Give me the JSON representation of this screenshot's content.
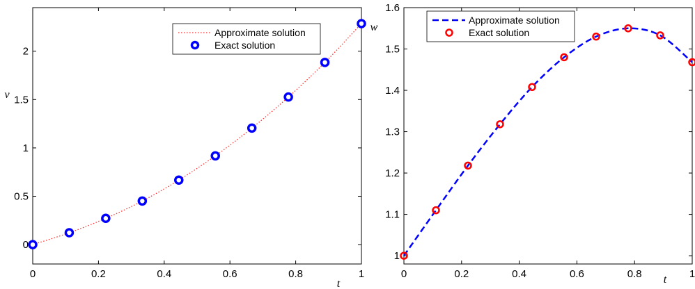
{
  "chart_data": [
    {
      "type": "line",
      "xlabel": "t",
      "ylabel": "v",
      "xlim": [
        0,
        1
      ],
      "ylim": [
        -0.2,
        2.45
      ],
      "xticks": [
        "0",
        "0.2",
        "0.4",
        "0.6",
        "0.8",
        "1"
      ],
      "yticks": [
        "0",
        "0.5",
        "1",
        "1.5",
        "2"
      ],
      "grid": false,
      "legend_placement": "top-right",
      "series": [
        {
          "name": "Approximate solution",
          "style": "dotted line",
          "color": "#ff3333",
          "x": [
            0,
            0.1111,
            0.2222,
            0.3333,
            0.4444,
            0.5556,
            0.6667,
            0.7778,
            0.8889,
            1
          ],
          "y": [
            0,
            0.123,
            0.272,
            0.451,
            0.667,
            0.918,
            1.205,
            1.526,
            1.884,
            2.285
          ]
        },
        {
          "name": "Exact solution",
          "style": "circle markers",
          "color": "#0000ff",
          "x": [
            0,
            0.1111,
            0.2222,
            0.3333,
            0.4444,
            0.5556,
            0.6667,
            0.7778,
            0.8889,
            1
          ],
          "y": [
            0,
            0.123,
            0.272,
            0.451,
            0.667,
            0.918,
            1.205,
            1.526,
            1.884,
            2.285
          ]
        }
      ]
    },
    {
      "type": "line",
      "xlabel": "t",
      "ylabel": "w",
      "xlim": [
        0,
        1
      ],
      "ylim": [
        0.98,
        1.6
      ],
      "xticks": [
        "0",
        "0.2",
        "0.4",
        "0.6",
        "0.8",
        "1"
      ],
      "yticks": [
        "1",
        "1.1",
        "1.2",
        "1.3",
        "1.4",
        "1.5",
        "1.6"
      ],
      "grid": false,
      "legend_placement": "top-left",
      "series": [
        {
          "name": "Approximate solution",
          "style": "dashed line",
          "color": "#0000ff",
          "x": [
            0,
            0.1111,
            0.2222,
            0.3333,
            0.4444,
            0.5556,
            0.6667,
            0.7778,
            0.8889,
            1
          ],
          "y": [
            1.0,
            1.11,
            1.218,
            1.318,
            1.408,
            1.48,
            1.53,
            1.55,
            1.533,
            1.468
          ]
        },
        {
          "name": "Exact solution",
          "style": "circle markers",
          "color": "#ff0000",
          "x": [
            0,
            0.1111,
            0.2222,
            0.3333,
            0.4444,
            0.5556,
            0.6667,
            0.7778,
            0.8889,
            1
          ],
          "y": [
            1.0,
            1.11,
            1.218,
            1.318,
            1.408,
            1.48,
            1.53,
            1.55,
            1.533,
            1.468
          ]
        }
      ]
    }
  ]
}
